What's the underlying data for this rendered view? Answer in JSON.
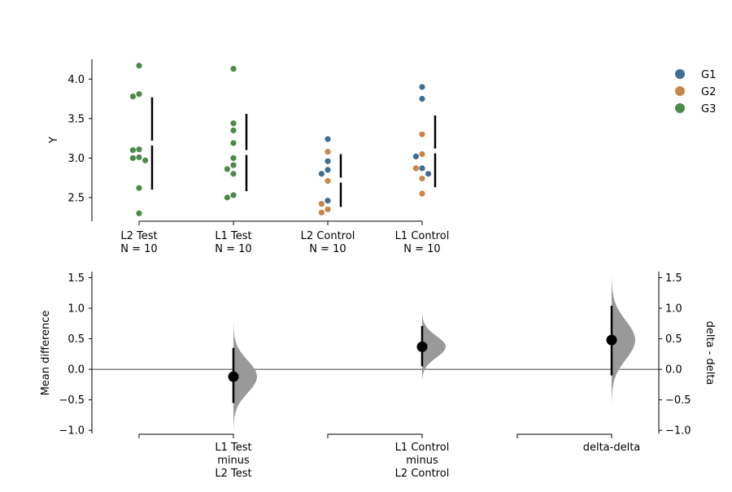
{
  "chart_data": [
    {
      "type": "scatter",
      "ylabel": "Y",
      "ylim": [
        2.2,
        4.25
      ],
      "yticks": [
        "2.5",
        "3.0",
        "3.5",
        "4.0"
      ],
      "groups": [
        {
          "label": "L2 Test",
          "n_label": "N = 10",
          "points": [
            {
              "y": 4.17,
              "g": "G3"
            },
            {
              "y": 3.81,
              "g": "G3"
            },
            {
              "y": 3.78,
              "g": "G3"
            },
            {
              "y": 3.11,
              "g": "G3"
            },
            {
              "y": 3.1,
              "g": "G3"
            },
            {
              "y": 3.01,
              "g": "G3"
            },
            {
              "y": 3.0,
              "g": "G3"
            },
            {
              "y": 2.97,
              "g": "G3"
            },
            {
              "y": 2.62,
              "g": "G3"
            },
            {
              "y": 2.3,
              "g": "G3"
            }
          ],
          "mean": 3.19,
          "sd_low": 2.6,
          "sd_high": 3.77
        },
        {
          "label": "L1 Test",
          "n_label": "N = 10",
          "points": [
            {
              "y": 4.13,
              "g": "G3"
            },
            {
              "y": 3.44,
              "g": "G3"
            },
            {
              "y": 3.35,
              "g": "G3"
            },
            {
              "y": 3.19,
              "g": "G3"
            },
            {
              "y": 3.0,
              "g": "G3"
            },
            {
              "y": 2.91,
              "g": "G3"
            },
            {
              "y": 2.86,
              "g": "G3"
            },
            {
              "y": 2.8,
              "g": "G3"
            },
            {
              "y": 2.53,
              "g": "G3"
            },
            {
              "y": 2.5,
              "g": "G3"
            }
          ],
          "mean": 3.07,
          "sd_low": 2.58,
          "sd_high": 3.56
        },
        {
          "label": "L2 Control",
          "n_label": "N = 10",
          "points": [
            {
              "y": 3.24,
              "g": "G1"
            },
            {
              "y": 3.08,
              "g": "G2"
            },
            {
              "y": 2.96,
              "g": "G1"
            },
            {
              "y": 2.85,
              "g": "G1"
            },
            {
              "y": 2.8,
              "g": "G1"
            },
            {
              "y": 2.71,
              "g": "G2"
            },
            {
              "y": 2.46,
              "g": "G1"
            },
            {
              "y": 2.42,
              "g": "G2"
            },
            {
              "y": 2.35,
              "g": "G2"
            },
            {
              "y": 2.31,
              "g": "G2"
            }
          ],
          "mean": 2.72,
          "sd_low": 2.38,
          "sd_high": 3.05
        },
        {
          "label": "L1 Control",
          "n_label": "N = 10",
          "points": [
            {
              "y": 3.9,
              "g": "G1"
            },
            {
              "y": 3.75,
              "g": "G1"
            },
            {
              "y": 3.3,
              "g": "G2"
            },
            {
              "y": 3.05,
              "g": "G2"
            },
            {
              "y": 3.02,
              "g": "G1"
            },
            {
              "y": 2.87,
              "g": "G1"
            },
            {
              "y": 2.87,
              "g": "G2"
            },
            {
              "y": 2.8,
              "g": "G1"
            },
            {
              "y": 2.74,
              "g": "G2"
            },
            {
              "y": 2.55,
              "g": "G2"
            }
          ],
          "mean": 3.09,
          "sd_low": 2.63,
          "sd_high": 3.54
        }
      ]
    },
    {
      "type": "scatter",
      "ylabel": "Mean difference",
      "ylabel_right": "delta - delta",
      "ylim": [
        -1.05,
        1.6
      ],
      "yticks": [
        "−1.0",
        "−0.5",
        "0.0",
        "0.5",
        "1.0",
        "1.5"
      ],
      "comparisons": [
        {
          "label_lines": [
            "L1 Test",
            "minus",
            "L2 Test"
          ],
          "mean_diff": -0.12,
          "ci_low": -0.55,
          "ci_high": 0.35,
          "dist_low": -0.97,
          "dist_high": 0.75,
          "dist_mode": -0.12
        },
        {
          "label_lines": [
            "L1 Control",
            "minus",
            "L2 Control"
          ],
          "mean_diff": 0.37,
          "ci_low": 0.05,
          "ci_high": 0.71,
          "dist_low": -0.15,
          "dist_high": 1.0,
          "dist_mode": 0.37
        },
        {
          "label_lines": [
            "delta-delta"
          ],
          "mean_diff": 0.48,
          "ci_low": -0.1,
          "ci_high": 1.04,
          "dist_low": -0.55,
          "dist_high": 1.5,
          "dist_mode": 0.48
        }
      ]
    }
  ],
  "legend": {
    "placement": "top-right",
    "items": [
      {
        "label": "G1",
        "color": "#3f6e94"
      },
      {
        "label": "G2",
        "color": "#c8854a"
      },
      {
        "label": "G3",
        "color": "#4b8a48"
      }
    ]
  },
  "colors": {
    "violin": "#999999",
    "axis": "#000000"
  }
}
